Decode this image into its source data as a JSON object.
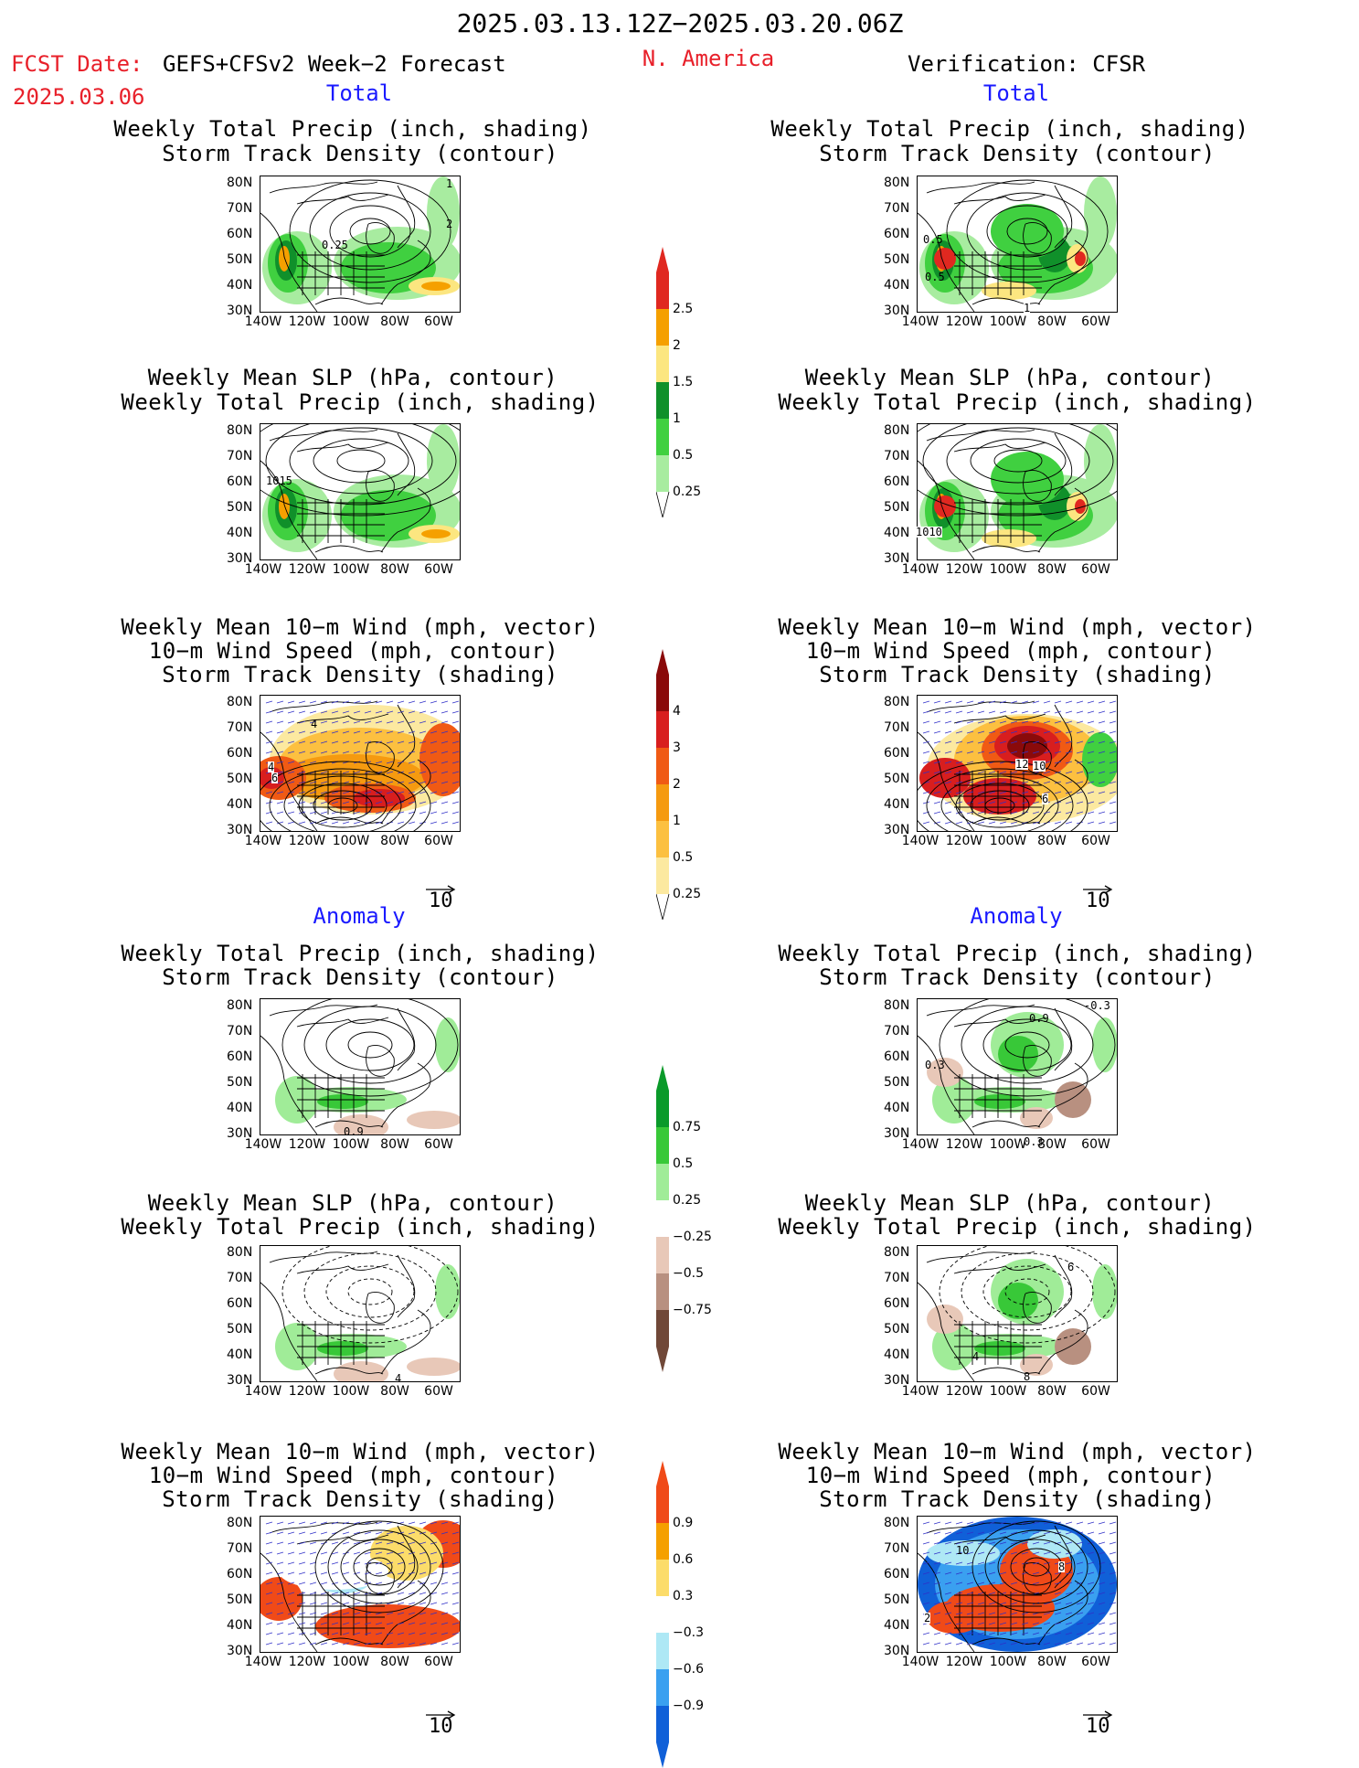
{
  "header": {
    "date_range": "2025.03.13.12Z−2025.03.20.06Z",
    "fcst_label": "FCST Date:",
    "fcst_product": "GEFS+CFSv2 Week−2 Forecast",
    "fcst_date": "2025.03.06",
    "region": "N. America",
    "verification": "Verification: CFSR"
  },
  "sections": {
    "total": "Total",
    "anomaly": "Anomaly"
  },
  "panel_titles": {
    "precip_track": [
      "Weekly Total Precip (inch, shading)",
      "Storm Track Density (contour)"
    ],
    "slp_precip": [
      "Weekly Mean SLP (hPa, contour)",
      "Weekly Total Precip (inch, shading)"
    ],
    "wind_track": [
      "Weekly Mean 10−m Wind (mph, vector)",
      "10−m Wind Speed (mph, contour)",
      "Storm Track Density (shading)"
    ]
  },
  "axes": {
    "lat_labels": [
      "80N",
      "70N",
      "60N",
      "50N",
      "40N",
      "30N"
    ],
    "lon_labels": [
      "140W",
      "120W",
      "100W",
      "80W",
      "60W"
    ]
  },
  "vector_ref": "10",
  "contour_labels": {
    "fcst_total_precip": [
      "1",
      "2",
      "0.25"
    ],
    "obs_total_precip": [
      "0.5",
      "0.5",
      "1"
    ],
    "fcst_total_slp": [
      "1015"
    ],
    "obs_total_slp": [
      "1010"
    ],
    "fcst_total_wind": [
      "4",
      "4",
      "6"
    ],
    "obs_total_wind": [
      "12",
      "10",
      "6"
    ],
    "fcst_anom_precip": [
      "0.9"
    ],
    "obs_anom_precip": [
      "0.9",
      "-0.3",
      "0.3",
      "0.3"
    ],
    "fcst_anom_slp": [
      "4"
    ],
    "obs_anom_slp": [
      "6",
      "4",
      "8"
    ],
    "obs_anom_wind": [
      "10",
      "8",
      "2"
    ]
  },
  "colorbars": {
    "total_precip": {
      "labels": [
        "2.5",
        "2",
        "1.5",
        "1",
        "0.5",
        "0.25"
      ],
      "colors": [
        "#e02820",
        "#f5a000",
        "#fce680",
        "#10902a",
        "#40d040",
        "#a8eca0"
      ]
    },
    "total_track": {
      "labels": [
        "4",
        "3",
        "2",
        "1",
        "0.5",
        "0.25"
      ],
      "colors": [
        "#8a0a0a",
        "#d81e1e",
        "#f05a14",
        "#f59a10",
        "#fcc040",
        "#fce9a0"
      ]
    },
    "anom_precip": {
      "labels": [
        "0.75",
        "0.5",
        "0.25",
        "−0.25",
        "−0.5",
        "−0.75"
      ],
      "colors": [
        "#0a9a2a",
        "#38c838",
        "#a0ec98",
        "#ffffff",
        "#e8c8b8",
        "#b89080",
        "#704838"
      ]
    },
    "anom_track": {
      "labels": [
        "0.9",
        "0.6",
        "0.3",
        "−0.3",
        "−0.6",
        "−0.9"
      ],
      "colors": [
        "#f04a18",
        "#f5a000",
        "#fcdc6a",
        "#ffffff",
        "#aee8f5",
        "#3aa0f0",
        "#1060d8"
      ]
    }
  }
}
